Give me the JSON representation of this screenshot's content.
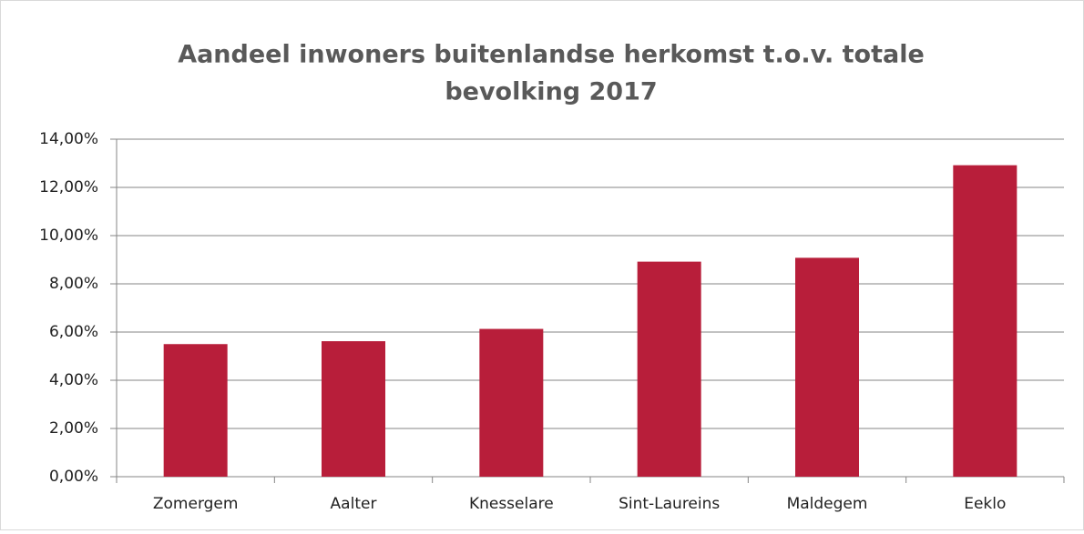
{
  "chart_data": {
    "type": "bar",
    "title": [
      "Aandeel inwoners buitenlandse herkomst t.o.v. totale",
      "bevolking 2017"
    ],
    "categories": [
      "Zomergem",
      "Aalter",
      "Knesselare",
      "Sint-Laureins",
      "Maldegem",
      "Eeklo"
    ],
    "values": [
      5.5,
      5.62,
      6.13,
      8.92,
      9.08,
      12.92
    ],
    "color": "#b81e3a",
    "ylim": [
      0,
      14
    ],
    "yticks": [
      {
        "value": 0,
        "label": "0,00%"
      },
      {
        "value": 2,
        "label": "2,00%"
      },
      {
        "value": 4,
        "label": "4,00%"
      },
      {
        "value": 6,
        "label": "6,00%"
      },
      {
        "value": 8,
        "label": "8,00%"
      },
      {
        "value": 10,
        "label": "10,00%"
      },
      {
        "value": 12,
        "label": "12,00%"
      },
      {
        "value": 14,
        "label": "14,00%"
      }
    ],
    "grid": true
  }
}
